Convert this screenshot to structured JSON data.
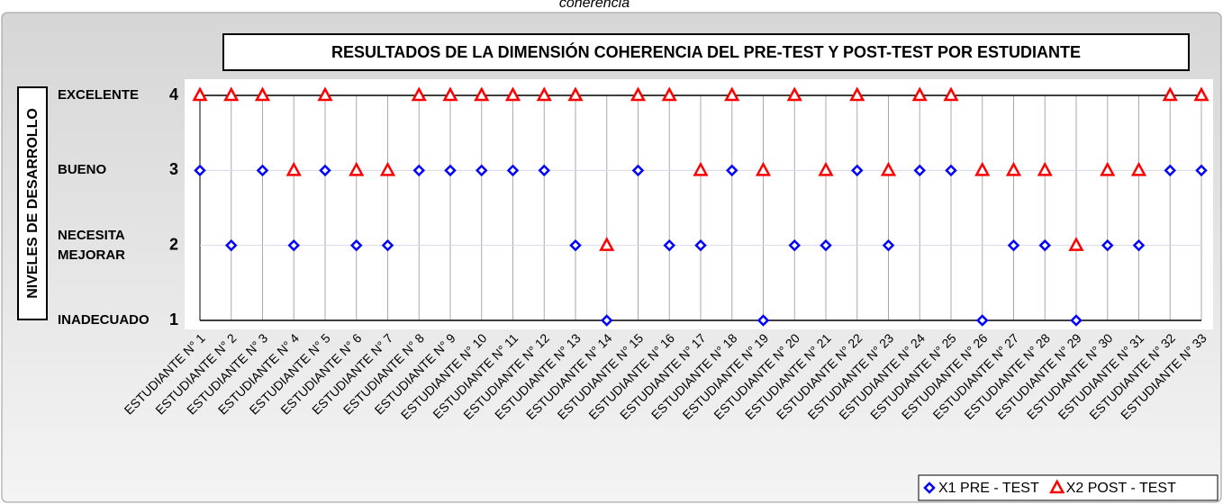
{
  "chart_data": {
    "type": "scatter",
    "caption": "coherencia",
    "title": "RESULTADOS DE LA DIMENSIÓN COHERENCIA DEL PRE-TEST Y POST-TEST POR ESTUDIANTE",
    "y_label": "NIVELES DE DESARROLLO",
    "categories": [
      "ESTUDIANTE N° 1",
      "ESTUDIANTE N° 2",
      "ESTUDIANTE N° 3",
      "ESTUDIANTE N° 4",
      "ESTUDIANTE N° 5",
      "ESTUDIANTE N° 6",
      "ESTUDIANTE N° 7",
      "ESTUDIANTE N° 8",
      "ESTUDIANTE N° 9",
      "ESTUDIANTE N° 10",
      "ESTUDIANTE N° 11",
      "ESTUDIANTE N° 12",
      "ESTUDIANTE N° 13",
      "ESTUDIANTE N° 14",
      "ESTUDIANTE N° 15",
      "ESTUDIANTE N° 16",
      "ESTUDIANTE N° 17",
      "ESTUDIANTE N° 18",
      "ESTUDIANTE N° 19",
      "ESTUDIANTE N° 20",
      "ESTUDIANTE N° 21",
      "ESTUDIANTE N° 22",
      "ESTUDIANTE N° 23",
      "ESTUDIANTE N° 24",
      "ESTUDIANTE N° 25",
      "ESTUDIANTE N° 26",
      "ESTUDIANTE N° 27",
      "ESTUDIANTE N° 28",
      "ESTUDIANTE N° 29",
      "ESTUDIANTE N° 30",
      "ESTUDIANTE N° 31",
      "ESTUDIANTE N° 32",
      "ESTUDIANTE N° 33"
    ],
    "series": [
      {
        "name": "X1 PRE - TEST",
        "color": "#0000ff",
        "marker": "diamond",
        "values": [
          3,
          2,
          3,
          2,
          3,
          2,
          2,
          3,
          3,
          3,
          3,
          3,
          2,
          1,
          3,
          2,
          2,
          3,
          1,
          2,
          2,
          3,
          2,
          3,
          3,
          1,
          2,
          2,
          1,
          2,
          2,
          3,
          3
        ]
      },
      {
        "name": "X2 POST - TEST",
        "color": "#ff0000",
        "marker": "triangle",
        "values": [
          4,
          4,
          4,
          3,
          4,
          3,
          3,
          4,
          4,
          4,
          4,
          4,
          4,
          2,
          4,
          4,
          3,
          4,
          3,
          4,
          3,
          4,
          3,
          4,
          4,
          3,
          3,
          3,
          2,
          3,
          3,
          4,
          4
        ]
      }
    ],
    "ylim": [
      1,
      4
    ],
    "yticks": [
      1,
      2,
      3,
      4
    ],
    "level_labels": [
      {
        "value": 1,
        "label": "INADECUADO"
      },
      {
        "value": 2,
        "label": "NECESITA MEJORAR"
      },
      {
        "value": 3,
        "label": "BUENO"
      },
      {
        "value": 4,
        "label": "EXCELENTE"
      }
    ],
    "legend": "bottom-right",
    "grid": true
  }
}
